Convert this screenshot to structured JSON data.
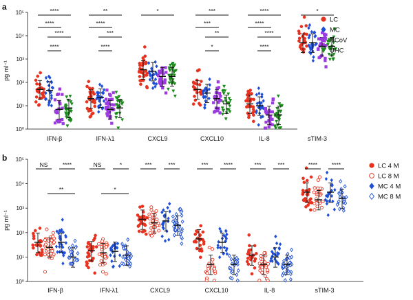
{
  "chart_data": [
    {
      "panel": "a",
      "type": "scatter",
      "ylabel": "pg ml⁻¹",
      "ylim": [
        1,
        100000
      ],
      "yscale": "log",
      "yticks": [
        {
          "label": "10⁰",
          "value": 1
        },
        {
          "label": "10¹",
          "value": 10
        },
        {
          "label": "10²",
          "value": 100
        },
        {
          "label": "10³",
          "value": 1000
        },
        {
          "label": "10⁴",
          "value": 10000
        },
        {
          "label": "10⁵",
          "value": 100000
        }
      ],
      "categories": [
        "IFN-β",
        "IFN-λ1",
        "CXCL9",
        "CXCL10",
        "IL-8",
        "sTIM-3"
      ],
      "legend_position": "right",
      "series": [
        {
          "name": "LC",
          "color": "#e8321f",
          "marker": "circle",
          "medians": [
            50,
            20,
            350,
            50,
            12,
            5000
          ]
        },
        {
          "name": "MC",
          "color": "#1f4fd6",
          "marker": "diamond",
          "medians": [
            45,
            22,
            300,
            35,
            10,
            5000
          ]
        },
        {
          "name": "HCoV",
          "color": "#9c3be0",
          "marker": "square",
          "medians": [
            7,
            7,
            180,
            20,
            4,
            3500
          ]
        },
        {
          "name": "UHC",
          "color": "#1d8a1d",
          "marker": "triangle",
          "medians": [
            8,
            8,
            180,
            12,
            4,
            3500
          ]
        }
      ],
      "significance": [
        {
          "category": 0,
          "from": 0,
          "to": 3,
          "label": "****"
        },
        {
          "category": 0,
          "from": 0,
          "to": 2,
          "label": "****"
        },
        {
          "category": 0,
          "from": 1,
          "to": 3,
          "label": "****"
        },
        {
          "category": 0,
          "from": 1,
          "to": 2,
          "label": "****"
        },
        {
          "category": 1,
          "from": 0,
          "to": 3,
          "label": "**"
        },
        {
          "category": 1,
          "from": 0,
          "to": 2,
          "label": "****"
        },
        {
          "category": 1,
          "from": 1,
          "to": 3,
          "label": "***"
        },
        {
          "category": 1,
          "from": 1,
          "to": 2,
          "label": "****"
        },
        {
          "category": 2,
          "from": 0,
          "to": 3,
          "label": "*"
        },
        {
          "category": 3,
          "from": 0,
          "to": 3,
          "label": "***"
        },
        {
          "category": 3,
          "from": 0,
          "to": 2,
          "label": "***"
        },
        {
          "category": 3,
          "from": 1,
          "to": 3,
          "label": "**"
        },
        {
          "category": 3,
          "from": 1,
          "to": 2,
          "label": "*"
        },
        {
          "category": 4,
          "from": 0,
          "to": 3,
          "label": "****"
        },
        {
          "category": 4,
          "from": 0,
          "to": 2,
          "label": "****"
        },
        {
          "category": 4,
          "from": 1,
          "to": 3,
          "label": "****"
        },
        {
          "category": 4,
          "from": 1,
          "to": 2,
          "label": "****"
        },
        {
          "category": 5,
          "from": 0,
          "to": 3,
          "label": "*"
        }
      ]
    },
    {
      "panel": "b",
      "type": "scatter",
      "ylabel": "pg ml⁻¹",
      "ylim": [
        1,
        100000
      ],
      "yscale": "log",
      "yticks": [
        {
          "label": "10⁰",
          "value": 1
        },
        {
          "label": "10¹",
          "value": 10
        },
        {
          "label": "10²",
          "value": 100
        },
        {
          "label": "10³",
          "value": 1000
        },
        {
          "label": "10⁴",
          "value": 10000
        },
        {
          "label": "10⁵",
          "value": 100000
        }
      ],
      "categories": [
        "IFN-β",
        "IFN-λ1",
        "CXCL9",
        "CXCL10",
        "IL-8",
        "sTIM-3"
      ],
      "legend_position": "right",
      "series": [
        {
          "name": "LC 4 M",
          "color": "#e8321f",
          "marker": "circle",
          "filled": true,
          "medians": [
            40,
            18,
            350,
            55,
            12,
            4500
          ]
        },
        {
          "name": "LC 8 M",
          "color": "#e8321f",
          "marker": "circle",
          "filled": false,
          "medians": [
            25,
            15,
            250,
            5,
            5,
            2200
          ]
        },
        {
          "name": "MC 4 M",
          "color": "#1f4fd6",
          "marker": "diamond",
          "filled": true,
          "medians": [
            40,
            17,
            300,
            40,
            10,
            4500
          ]
        },
        {
          "name": "MC 8 M",
          "color": "#1f4fd6",
          "marker": "diamond",
          "filled": false,
          "medians": [
            10,
            12,
            200,
            5,
            5,
            2500
          ]
        }
      ],
      "significance": [
        {
          "category": 0,
          "from": 0,
          "to": 1,
          "label": "NS"
        },
        {
          "category": 0,
          "from": 2,
          "to": 3,
          "label": "****"
        },
        {
          "category": 0,
          "from": 1,
          "to": 3,
          "label": "**"
        },
        {
          "category": 1,
          "from": 0,
          "to": 1,
          "label": "NS"
        },
        {
          "category": 1,
          "from": 2,
          "to": 3,
          "label": "*"
        },
        {
          "category": 1,
          "from": 1,
          "to": 3,
          "label": "*"
        },
        {
          "category": 2,
          "from": 0,
          "to": 1,
          "label": "***"
        },
        {
          "category": 2,
          "from": 2,
          "to": 3,
          "label": "***"
        },
        {
          "category": 3,
          "from": 0,
          "to": 1,
          "label": "***"
        },
        {
          "category": 3,
          "from": 2,
          "to": 3,
          "label": "****"
        },
        {
          "category": 4,
          "from": 0,
          "to": 1,
          "label": "***"
        },
        {
          "category": 4,
          "from": 2,
          "to": 3,
          "label": "***"
        },
        {
          "category": 5,
          "from": 0,
          "to": 1,
          "label": "****"
        },
        {
          "category": 5,
          "from": 2,
          "to": 3,
          "label": "****"
        }
      ]
    }
  ]
}
